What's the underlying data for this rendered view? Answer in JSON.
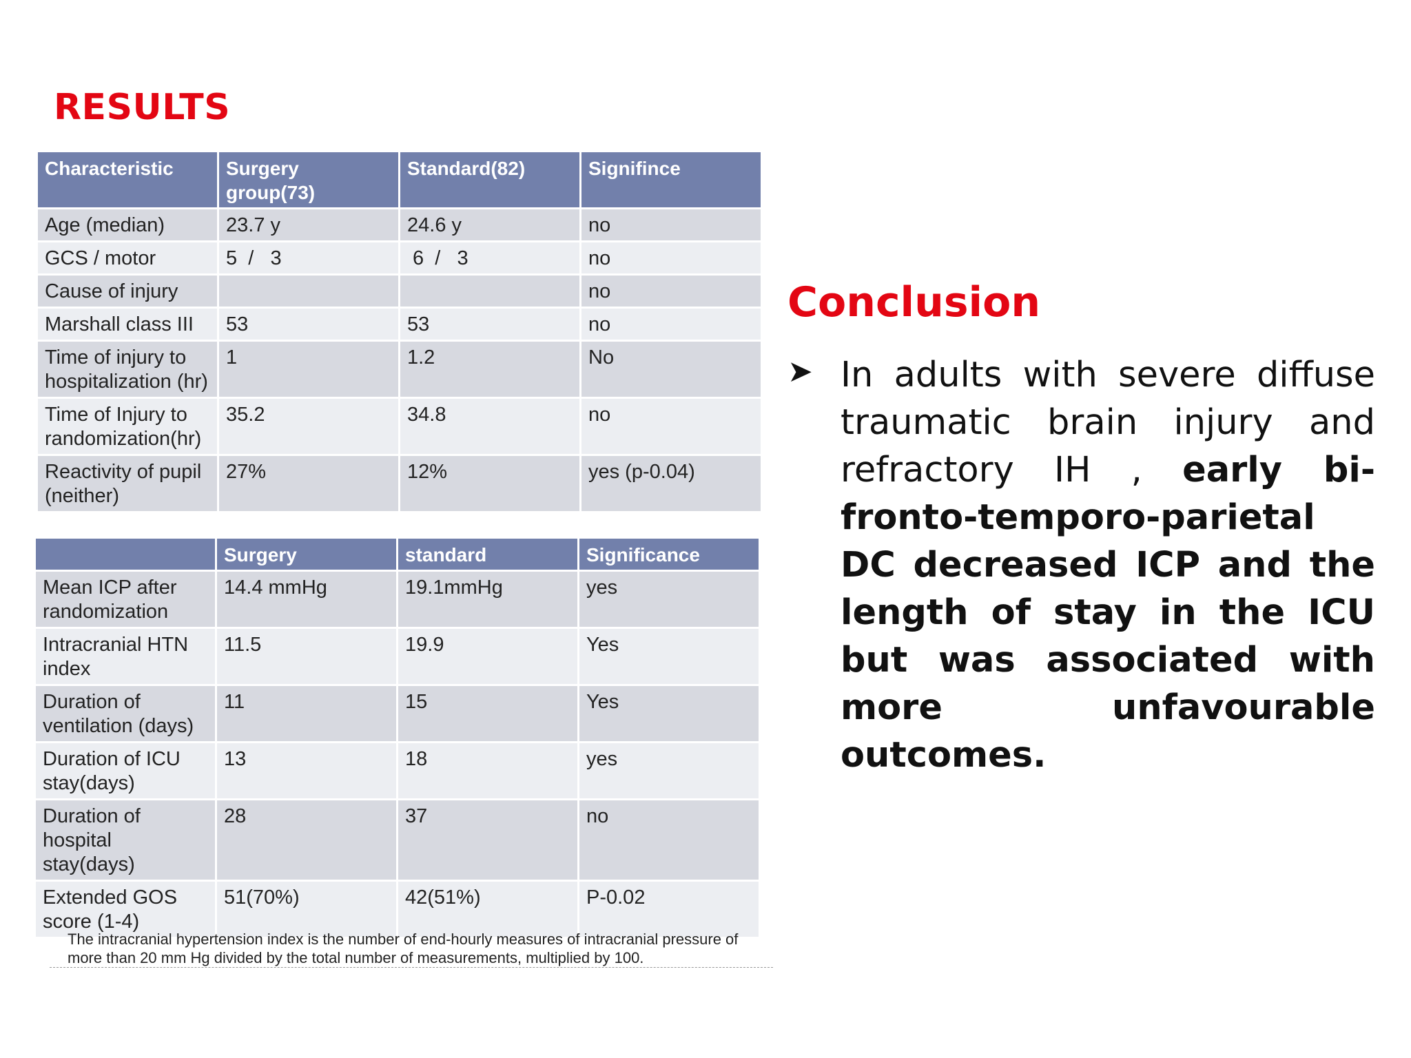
{
  "results_title": "RESULTS",
  "table1": {
    "headers": [
      "Characteristic",
      "Surgery group(73)",
      "Standard(82)",
      "Signifince"
    ],
    "rows": [
      [
        "Age (median)",
        "23.7 y",
        "24.6 y",
        "no"
      ],
      [
        "GCS / motor",
        "5  /   3",
        " 6  /   3",
        "no"
      ],
      [
        "Cause of injury",
        "",
        "",
        "no"
      ],
      [
        "Marshall class III",
        "53",
        "53",
        "no"
      ],
      [
        "Time of injury to hospitalization (hr)",
        "1",
        "1.2",
        "No"
      ],
      [
        "Time of Injury to randomization(hr)",
        "35.2",
        "34.8",
        "no"
      ],
      [
        "Reactivity of pupil (neither)",
        "27%",
        "12%",
        "yes (p-0.04)"
      ]
    ]
  },
  "table2": {
    "headers": [
      "",
      "Surgery",
      "standard",
      "Significance"
    ],
    "rows": [
      [
        "Mean ICP after randomization",
        "14.4 mmHg",
        "19.1mmHg",
        "yes"
      ],
      [
        "Intracranial HTN index",
        "11.5",
        "19.9",
        "Yes"
      ],
      [
        "Duration of ventilation (days)",
        "11",
        "15",
        "Yes"
      ],
      [
        "Duration of ICU stay(days)",
        "13",
        "18",
        "yes"
      ],
      [
        "Duration of hospital stay(days)",
        "28",
        "37",
        "no"
      ],
      [
        "Extended GOS score (1-4)",
        "51(70%)",
        "42(51%)",
        "P-0.02"
      ]
    ]
  },
  "footnote": "The intracranial hypertension index is the number of end-hourly measures of intracranial pressure of more than 20 mm Hg divided by the total number of measurements, multiplied by 100.",
  "conclusion": {
    "title": "Conclusion",
    "bullet_icon": "arrow-bullet-icon",
    "text_normal": "In adults with severe diffuse traumatic brain injury and refractory IH , ",
    "text_bold": "early bi-fronto-temporo-parietal DC decreased ICP and the length of stay in the ICU but was associated with more unfavourable outcomes."
  }
}
